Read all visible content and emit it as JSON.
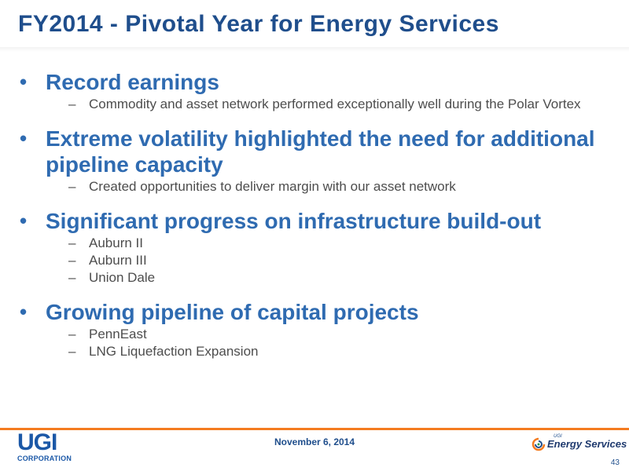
{
  "slide": {
    "title": "FY2014 - Pivotal Year for Energy Services",
    "bullet_marker": "•",
    "sub_marker": "–",
    "bullets": [
      {
        "text": "Record earnings",
        "subs": [
          "Commodity and asset network performed exceptionally well during the Polar Vortex"
        ]
      },
      {
        "text": "Extreme volatility highlighted the need for additional pipeline capacity",
        "subs": [
          "Created opportunities to deliver margin with our asset network"
        ]
      },
      {
        "text": "Significant progress on infrastructure build-out",
        "subs": [
          "Auburn II",
          "Auburn III",
          "Union Dale"
        ]
      },
      {
        "text": "Growing pipeline of capital projects",
        "subs": [
          "PennEast",
          "LNG Liquefaction Expansion"
        ]
      }
    ]
  },
  "footer": {
    "date": "November 6, 2014",
    "page_number": "43",
    "left_logo": {
      "word": "UGI",
      "subtext": "CORPORATION",
      "color": "#1b58a7"
    },
    "right_logo": {
      "small": "UGI",
      "text": "Energy Services",
      "color": "#1f3a6e"
    },
    "rule_color": "#f47b20"
  },
  "colors": {
    "title": "#1f4e8c",
    "bullet": "#2f6bb1",
    "sub": "#4d4d4d"
  }
}
